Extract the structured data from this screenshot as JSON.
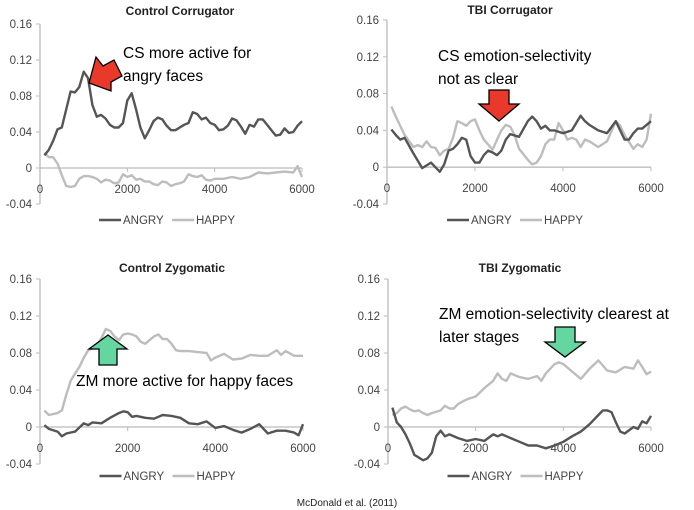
{
  "colors": {
    "angry": "#555555",
    "happy": "#bdbdbd",
    "axis": "#bbbbbb",
    "red_arrow": "#e8392a",
    "green_arrow": "#66d6a0"
  },
  "footnote": "McDonald et al. (2011)",
  "chart_data": [
    {
      "type": "line",
      "title": "Control Corrugator",
      "ylim": [
        -0.04,
        0.16
      ],
      "yticks": [
        "-0.04",
        "0",
        "0.04",
        "0.08",
        "0.12",
        "0.16"
      ],
      "xlim": [
        0,
        6000
      ],
      "xticks": [
        "0",
        "2000",
        "4000",
        "6000"
      ],
      "legend": "bottom",
      "annotation": {
        "lines": [
          "CS more active for",
          "angry faces"
        ],
        "arrow": "red"
      },
      "series": [
        {
          "name": "ANGRY",
          "x": [
            100,
            200,
            300,
            400,
            500,
            600,
            700,
            800,
            900,
            1000,
            1100,
            1200,
            1300,
            1400,
            1500,
            1600,
            1700,
            1800,
            1900,
            2000,
            2100,
            2200,
            2300,
            2400,
            2500,
            2600,
            2700,
            2800,
            2900,
            3000,
            3100,
            3200,
            3300,
            3400,
            3500,
            3600,
            3700,
            3800,
            3900,
            4000,
            4100,
            4200,
            4300,
            4400,
            4500,
            4600,
            4700,
            4800,
            4900,
            5000,
            5100,
            5200,
            5300,
            5400,
            5500,
            5600,
            5700,
            5800,
            5900,
            6000
          ],
          "values": [
            0.014,
            0.02,
            0.03,
            0.043,
            0.045,
            0.065,
            0.085,
            0.084,
            0.09,
            0.107,
            0.1,
            0.07,
            0.057,
            0.059,
            0.055,
            0.048,
            0.045,
            0.045,
            0.05,
            0.075,
            0.083,
            0.065,
            0.045,
            0.033,
            0.042,
            0.052,
            0.056,
            0.054,
            0.047,
            0.042,
            0.042,
            0.045,
            0.048,
            0.05,
            0.062,
            0.06,
            0.054,
            0.056,
            0.05,
            0.048,
            0.042,
            0.043,
            0.047,
            0.055,
            0.053,
            0.046,
            0.038,
            0.048,
            0.046,
            0.054,
            0.054,
            0.048,
            0.042,
            0.036,
            0.037,
            0.044,
            0.039,
            0.04,
            0.047,
            0.052
          ]
        },
        {
          "name": "HAPPY",
          "x": [
            100,
            200,
            300,
            400,
            500,
            600,
            700,
            800,
            900,
            1000,
            1100,
            1200,
            1300,
            1400,
            1500,
            1600,
            1700,
            1800,
            1900,
            2000,
            2100,
            2200,
            2300,
            2400,
            2500,
            2600,
            2700,
            2800,
            2900,
            3000,
            3100,
            3200,
            3300,
            3400,
            3500,
            3600,
            3700,
            3800,
            3900,
            4000,
            4200,
            4400,
            4600,
            4800,
            5000,
            5200,
            5400,
            5600,
            5800,
            5900,
            6000
          ],
          "values": [
            0.017,
            0.012,
            0.012,
            0.005,
            -0.008,
            -0.02,
            -0.021,
            -0.02,
            -0.012,
            -0.009,
            -0.009,
            -0.01,
            -0.012,
            -0.016,
            -0.013,
            -0.014,
            -0.017,
            -0.016,
            -0.007,
            -0.01,
            -0.008,
            -0.013,
            -0.012,
            -0.015,
            -0.015,
            -0.018,
            -0.019,
            -0.015,
            -0.016,
            -0.02,
            -0.018,
            -0.017,
            -0.015,
            -0.007,
            -0.009,
            -0.01,
            -0.008,
            -0.013,
            -0.014,
            -0.012,
            -0.012,
            -0.01,
            -0.012,
            -0.01,
            -0.005,
            -0.006,
            -0.005,
            -0.004,
            -0.005,
            0.002,
            -0.01
          ]
        }
      ]
    },
    {
      "type": "line",
      "title": "TBI Corrugator",
      "ylim": [
        -0.04,
        0.16
      ],
      "yticks": [
        "-0.04",
        "0",
        "0.04",
        "0.08",
        "0.12",
        "0.16"
      ],
      "xlim": [
        0,
        6000
      ],
      "xticks": [
        "0",
        "2000",
        "4000",
        "6000"
      ],
      "legend": "bottom",
      "annotation": {
        "lines": [
          "CS emotion-selectivity",
          "not as clear"
        ],
        "arrow": "red"
      },
      "series": [
        {
          "name": "ANGRY",
          "x": [
            100,
            200,
            300,
            400,
            600,
            800,
            900,
            1000,
            1200,
            1300,
            1400,
            1500,
            1600,
            1700,
            1800,
            1900,
            2000,
            2100,
            2200,
            2300,
            2400,
            2500,
            2600,
            2700,
            2800,
            3000,
            3200,
            3300,
            3400,
            3500,
            3600,
            3700,
            3800,
            4000,
            4200,
            4400,
            4500,
            4600,
            4800,
            5000,
            5200,
            5300,
            5400,
            5500,
            5600,
            5700,
            5800,
            6000
          ],
          "values": [
            0.041,
            0.035,
            0.03,
            0.032,
            0.015,
            -0.001,
            0.002,
            0.005,
            -0.005,
            0.003,
            0.018,
            0.02,
            0.025,
            0.032,
            0.03,
            0.012,
            0.005,
            0.005,
            0.013,
            0.018,
            0.016,
            0.013,
            0.018,
            0.03,
            0.036,
            0.033,
            0.05,
            0.055,
            0.05,
            0.042,
            0.045,
            0.04,
            0.04,
            0.037,
            0.04,
            0.056,
            0.05,
            0.046,
            0.04,
            0.037,
            0.05,
            0.04,
            0.03,
            0.03,
            0.037,
            0.042,
            0.042,
            0.05
          ]
        },
        {
          "name": "HAPPY",
          "x": [
            100,
            200,
            400,
            600,
            700,
            800,
            900,
            1000,
            1100,
            1200,
            1300,
            1400,
            1500,
            1600,
            1700,
            1800,
            1900,
            2000,
            2100,
            2200,
            2400,
            2500,
            2600,
            2700,
            2800,
            2900,
            3000,
            3200,
            3300,
            3400,
            3500,
            3600,
            3700,
            3800,
            3900,
            4000,
            4100,
            4200,
            4300,
            4400,
            4500,
            4600,
            4800,
            5000,
            5200,
            5300,
            5400,
            5600,
            5700,
            5800,
            5900,
            6000
          ],
          "values": [
            0.066,
            0.055,
            0.035,
            0.022,
            0.024,
            0.022,
            0.028,
            0.022,
            0.021,
            0.013,
            0.018,
            0.02,
            0.032,
            0.05,
            0.048,
            0.045,
            0.05,
            0.052,
            0.04,
            0.03,
            0.019,
            0.03,
            0.04,
            0.046,
            0.044,
            0.035,
            0.02,
            0.008,
            0.003,
            0.005,
            0.012,
            0.025,
            0.03,
            0.03,
            0.048,
            0.04,
            0.03,
            0.032,
            0.03,
            0.022,
            0.03,
            0.028,
            0.022,
            0.028,
            0.05,
            0.045,
            0.035,
            0.02,
            0.025,
            0.022,
            0.03,
            0.058
          ]
        }
      ]
    },
    {
      "type": "line",
      "title": "Control Zygomatic",
      "ylim": [
        -0.04,
        0.16
      ],
      "yticks": [
        "-0.04",
        "0",
        "0.04",
        "0.08",
        "0.12",
        "0.16"
      ],
      "xlim": [
        0,
        6000
      ],
      "xticks": [
        "0",
        "2000",
        "4000",
        "6000"
      ],
      "legend": "bottom",
      "annotation": {
        "lines": [
          "ZM more active for happy faces"
        ],
        "arrow": "green"
      },
      "series": [
        {
          "name": "ANGRY",
          "x": [
            100,
            200,
            400,
            500,
            600,
            800,
            1000,
            1100,
            1200,
            1400,
            1600,
            1800,
            1900,
            2000,
            2100,
            2200,
            2400,
            2600,
            2800,
            3000,
            3200,
            3400,
            3600,
            3800,
            4000,
            4200,
            4400,
            4600,
            4800,
            5000,
            5200,
            5400,
            5600,
            5800,
            5900,
            6000
          ],
          "values": [
            0.002,
            -0.002,
            -0.005,
            -0.01,
            -0.007,
            -0.005,
            0.004,
            0.002,
            0.005,
            0.004,
            0.01,
            0.015,
            0.017,
            0.016,
            0.011,
            0.012,
            0.01,
            0.009,
            0.013,
            0.012,
            0.01,
            0.004,
            0.003,
            0.006,
            -0.001,
            0.001,
            -0.003,
            -0.006,
            -0.002,
            0.003,
            -0.007,
            -0.004,
            -0.004,
            -0.006,
            -0.009,
            0.003
          ]
        },
        {
          "name": "HAPPY",
          "x": [
            100,
            200,
            300,
            400,
            500,
            600,
            700,
            800,
            900,
            1000,
            1100,
            1200,
            1300,
            1400,
            1500,
            1600,
            1700,
            1800,
            1900,
            2000,
            2100,
            2200,
            2300,
            2400,
            2500,
            2600,
            2700,
            2800,
            2900,
            3000,
            3100,
            3200,
            3400,
            3600,
            3800,
            3900,
            4000,
            4200,
            4400,
            4600,
            4800,
            5000,
            5200,
            5400,
            5500,
            5600,
            5800,
            6000
          ],
          "values": [
            0.018,
            0.013,
            0.014,
            0.015,
            0.018,
            0.035,
            0.05,
            0.058,
            0.065,
            0.075,
            0.083,
            0.085,
            0.088,
            0.096,
            0.106,
            0.104,
            0.098,
            0.094,
            0.1,
            0.101,
            0.1,
            0.098,
            0.092,
            0.09,
            0.094,
            0.098,
            0.1,
            0.095,
            0.095,
            0.09,
            0.083,
            0.082,
            0.082,
            0.081,
            0.08,
            0.072,
            0.075,
            0.079,
            0.073,
            0.074,
            0.078,
            0.077,
            0.077,
            0.083,
            0.078,
            0.082,
            0.077,
            0.077
          ]
        }
      ]
    },
    {
      "type": "line",
      "title": "TBI Zygomatic",
      "ylim": [
        -0.04,
        0.16
      ],
      "yticks": [
        "-0.04",
        "0",
        "0.04",
        "0.08",
        "0.12",
        "0.16"
      ],
      "xlim": [
        0,
        6000
      ],
      "xticks": [
        "0",
        "2000",
        "4000",
        "6000"
      ],
      "legend": "bottom",
      "annotation": {
        "lines": [
          "ZM emotion-selectivity clearest at",
          "later stages"
        ],
        "arrow": "green"
      },
      "series": [
        {
          "name": "ANGRY",
          "x": [
            100,
            200,
            300,
            400,
            500,
            600,
            700,
            800,
            900,
            1000,
            1100,
            1200,
            1300,
            1400,
            1600,
            1800,
            2000,
            2200,
            2400,
            2500,
            2600,
            2800,
            3000,
            3200,
            3400,
            3600,
            3800,
            4000,
            4200,
            4400,
            4600,
            4800,
            4900,
            5000,
            5100,
            5200,
            5300,
            5400,
            5600,
            5700,
            5800,
            5900,
            6000
          ],
          "values": [
            0.021,
            0.005,
            0.0,
            -0.008,
            -0.018,
            -0.03,
            -0.033,
            -0.036,
            -0.034,
            -0.028,
            -0.01,
            -0.004,
            -0.01,
            -0.008,
            -0.012,
            -0.015,
            -0.013,
            -0.015,
            -0.008,
            -0.01,
            -0.008,
            -0.012,
            -0.016,
            -0.02,
            -0.02,
            -0.023,
            -0.02,
            -0.016,
            -0.01,
            -0.005,
            0.003,
            0.013,
            0.018,
            0.018,
            0.016,
            0.005,
            -0.005,
            -0.007,
            0.0,
            -0.002,
            0.006,
            0.004,
            0.012
          ]
        },
        {
          "name": "HAPPY",
          "x": [
            100,
            200,
            300,
            400,
            500,
            600,
            700,
            800,
            900,
            1000,
            1200,
            1300,
            1400,
            1500,
            1600,
            1800,
            2000,
            2200,
            2400,
            2500,
            2600,
            2700,
            2800,
            3000,
            3200,
            3400,
            3500,
            3600,
            3800,
            3900,
            4000,
            4200,
            4400,
            4600,
            4800,
            5000,
            5200,
            5400,
            5600,
            5700,
            5800,
            5900,
            6000
          ],
          "values": [
            0.013,
            0.015,
            0.02,
            0.022,
            0.019,
            0.017,
            0.018,
            0.015,
            0.013,
            0.015,
            0.018,
            0.023,
            0.02,
            0.02,
            0.025,
            0.03,
            0.033,
            0.042,
            0.05,
            0.058,
            0.052,
            0.05,
            0.058,
            0.054,
            0.052,
            0.055,
            0.05,
            0.058,
            0.068,
            0.07,
            0.068,
            0.06,
            0.052,
            0.063,
            0.072,
            0.061,
            0.059,
            0.065,
            0.063,
            0.072,
            0.065,
            0.057,
            0.06
          ]
        }
      ]
    }
  ]
}
